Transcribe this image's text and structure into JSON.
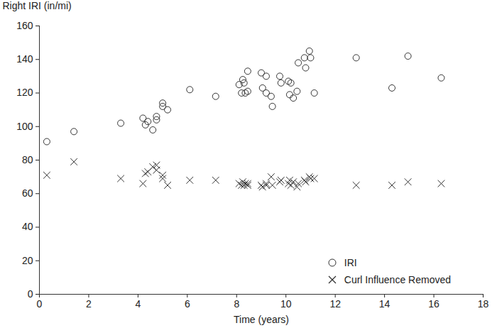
{
  "chart_data": {
    "type": "scatter",
    "x_label": "Time (years)",
    "y_label": "Right IRI (in/mi)",
    "xlim": [
      0,
      18
    ],
    "xticks": [
      0,
      2,
      4,
      6,
      8,
      10,
      12,
      14,
      16,
      18
    ],
    "ylim": [
      0,
      160
    ],
    "yticks": [
      0,
      20,
      40,
      60,
      80,
      100,
      120,
      140,
      160
    ],
    "legend": "lower right",
    "grid": false,
    "x": [
      0.3,
      1.4,
      3.3,
      4.2,
      4.3,
      4.4,
      4.6,
      4.75,
      4.75,
      5.0,
      5.0,
      5.2,
      6.1,
      7.15,
      8.1,
      8.2,
      8.25,
      8.3,
      8.35,
      8.45,
      8.45,
      9.0,
      9.05,
      9.2,
      9.2,
      9.4,
      9.45,
      9.75,
      9.8,
      10.1,
      10.15,
      10.2,
      10.3,
      10.45,
      10.5,
      10.75,
      10.8,
      10.95,
      11.0,
      11.15,
      12.85,
      14.3,
      14.95,
      16.3
    ],
    "series": [
      {
        "name": "IRI",
        "color": "#333333",
        "marker": "circle",
        "values": [
          91,
          97,
          102,
          105,
          101,
          103,
          98,
          104,
          106,
          112,
          114,
          110,
          122,
          118,
          125,
          120,
          128,
          126,
          120,
          133,
          121,
          132,
          123,
          130,
          120,
          118,
          112,
          130,
          126,
          127,
          119,
          126,
          117,
          121,
          138,
          141,
          135,
          145,
          141,
          120,
          141,
          123,
          142,
          129
        ]
      },
      {
        "name": "Curl Influence Removed",
        "color": "#333333",
        "marker": "x",
        "values": [
          71,
          79,
          69,
          66,
          72,
          73,
          76,
          77,
          74,
          69,
          71,
          65,
          68,
          68,
          66,
          65,
          67,
          65,
          66,
          65,
          66,
          65,
          64,
          66,
          65,
          70,
          65,
          67,
          68,
          66,
          68,
          65,
          67,
          64,
          66,
          68,
          67,
          70,
          69,
          69,
          65,
          65,
          67,
          66
        ]
      }
    ]
  }
}
